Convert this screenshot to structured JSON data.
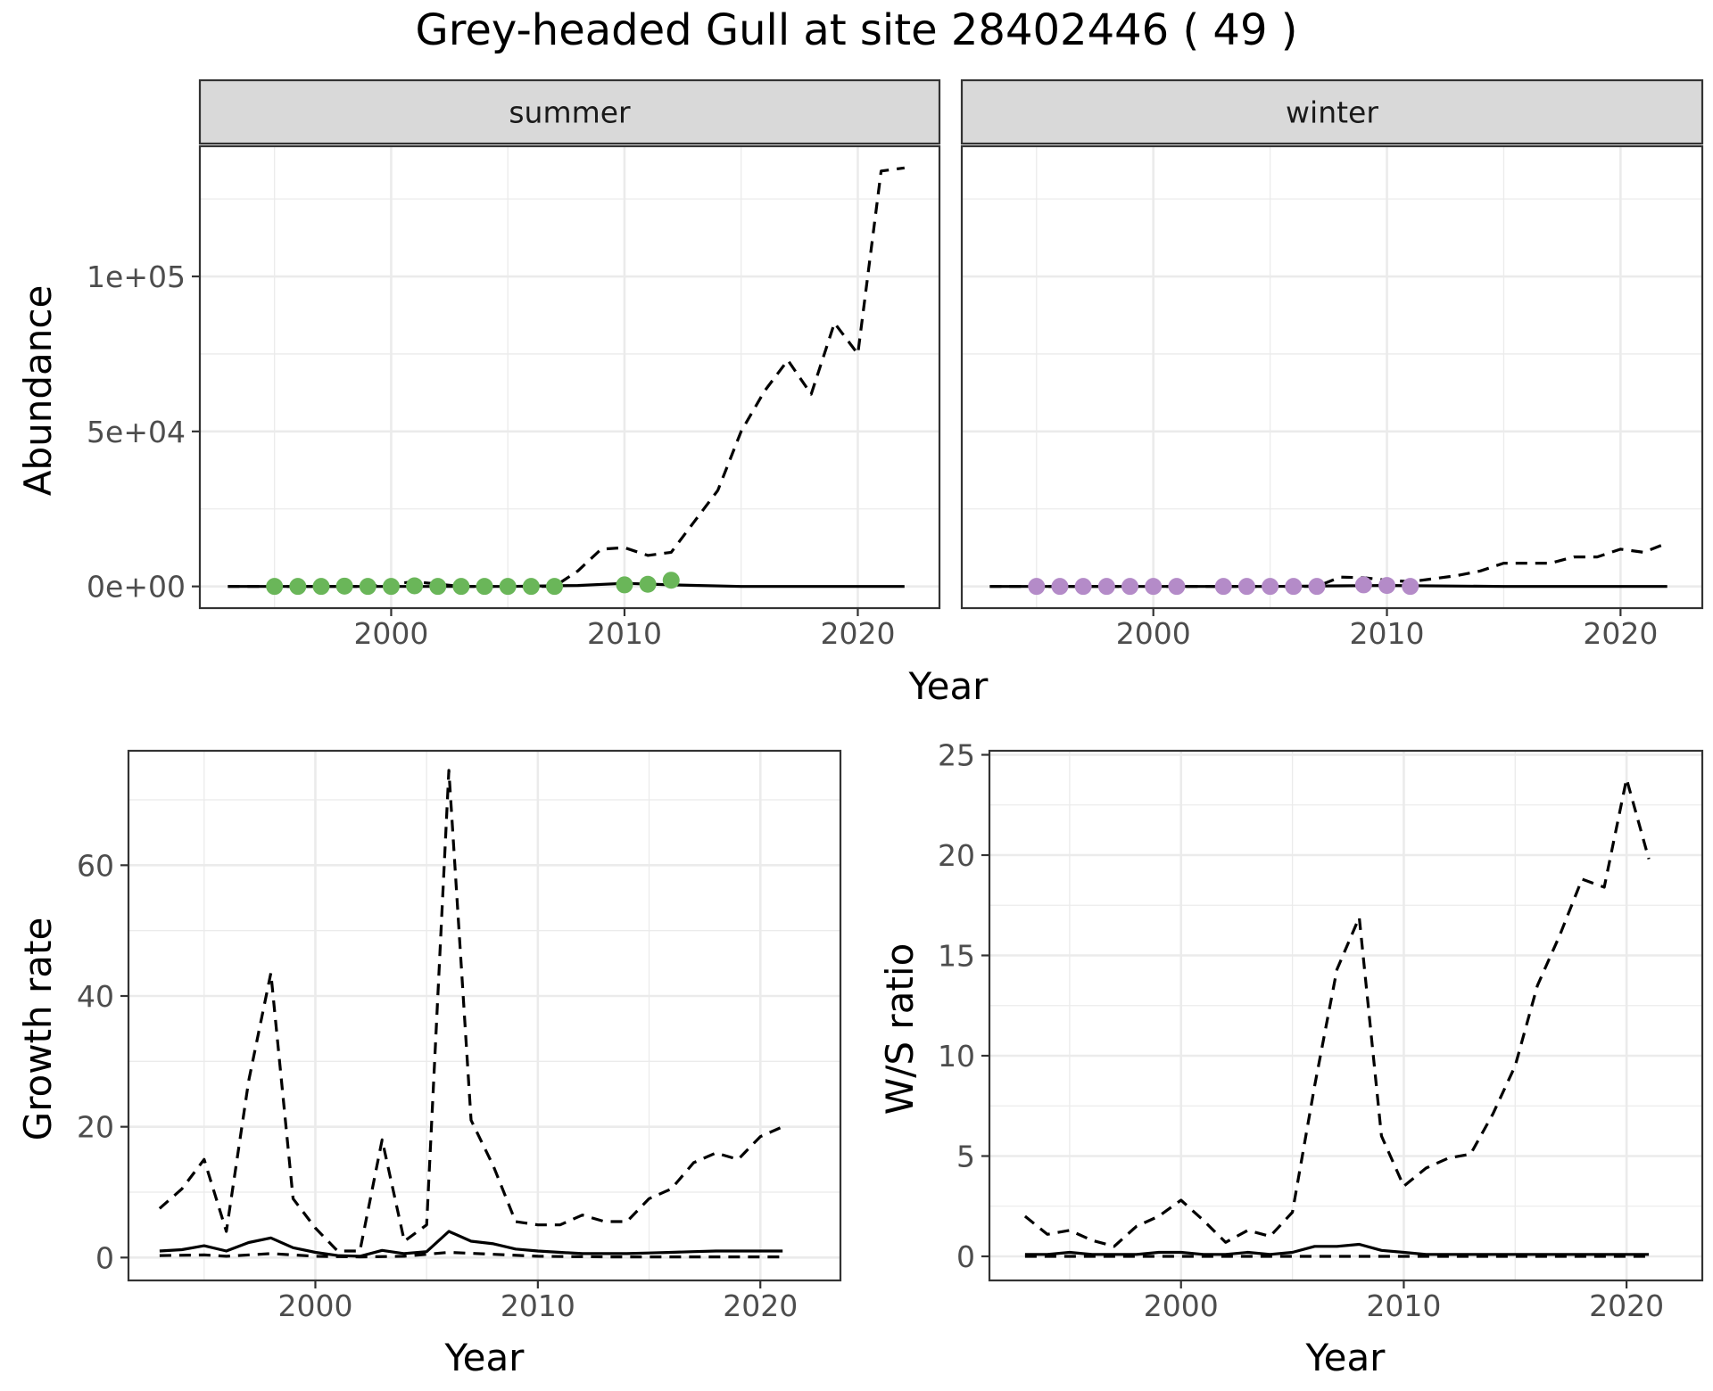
{
  "title": "Grey-headed Gull at site 28402446 ( 49 )",
  "colors": {
    "summer_points": "#6ab659",
    "winter_points": "#b48bc8",
    "lines": "#000000",
    "strip_bg": "#d9d9d9",
    "grid": "#ebebeb"
  },
  "chart_data": [
    {
      "type": "line",
      "panel": "summer",
      "facet_label": "summer",
      "xlabel": "Year",
      "ylabel": "Abundance",
      "xlim": [
        1991.8,
        2023.5
      ],
      "ylim": [
        -7000,
        142000
      ],
      "x_ticks": [
        2000,
        2010,
        2020
      ],
      "y_ticks": [
        0,
        50000,
        100000
      ],
      "y_tick_labels": [
        "0e+00",
        "5e+04",
        "1e+05"
      ],
      "grid": true,
      "series": [
        {
          "style": "solid",
          "x": [
            1993,
            1995,
            2000,
            2005,
            2008,
            2010,
            2012,
            2015,
            2020,
            2022
          ],
          "y": [
            0,
            0,
            0,
            0,
            300,
            1000,
            500,
            0,
            0,
            0
          ]
        },
        {
          "style": "dashed",
          "x": [
            1993,
            1995,
            1997,
            1999,
            2001,
            2003,
            2005,
            2007,
            2008,
            2009,
            2010,
            2011,
            2012,
            2013,
            2014,
            2015,
            2016,
            2017,
            2018,
            2019,
            2020,
            2021,
            2022
          ],
          "y": [
            0,
            0,
            0,
            0,
            1500,
            0,
            0,
            0,
            5000,
            12000,
            12500,
            10000,
            11000,
            21000,
            31000,
            50000,
            63000,
            73000,
            62000,
            85000,
            75000,
            134000,
            135000
          ]
        }
      ],
      "points": {
        "x": [
          1995,
          1996,
          1997,
          1998,
          1999,
          2000,
          2001,
          2002,
          2003,
          2004,
          2005,
          2006,
          2007,
          2010,
          2011,
          2012
        ],
        "y": [
          0,
          0,
          0,
          100,
          0,
          0,
          200,
          0,
          0,
          0,
          0,
          0,
          0,
          500,
          700,
          2000
        ]
      }
    },
    {
      "type": "line",
      "panel": "winter",
      "facet_label": "winter",
      "xlabel": "Year",
      "ylabel": "Abundance",
      "xlim": [
        1991.8,
        2023.5
      ],
      "ylim": [
        -7000,
        142000
      ],
      "x_ticks": [
        2000,
        2010,
        2020
      ],
      "grid": true,
      "series": [
        {
          "style": "solid",
          "x": [
            1993,
            2000,
            2005,
            2008,
            2010,
            2015,
            2022
          ],
          "y": [
            0,
            0,
            0,
            200,
            300,
            0,
            0
          ]
        },
        {
          "style": "dashed",
          "x": [
            1993,
            1995,
            2000,
            2005,
            2007,
            2008,
            2009,
            2010,
            2011,
            2012,
            2013,
            2014,
            2015,
            2016,
            2017,
            2018,
            2019,
            2020,
            2021,
            2022
          ],
          "y": [
            0,
            0,
            0,
            0,
            0,
            3000,
            2800,
            2000,
            1500,
            2500,
            3500,
            5000,
            7500,
            7500,
            7500,
            9500,
            9500,
            12000,
            11000,
            14000
          ]
        }
      ],
      "points": {
        "x": [
          1995,
          1996,
          1997,
          1998,
          1999,
          2000,
          2001,
          2003,
          2004,
          2005,
          2006,
          2007,
          2009,
          2010,
          2011
        ],
        "y": [
          0,
          0,
          0,
          0,
          0,
          0,
          0,
          0,
          0,
          0,
          0,
          0,
          500,
          300,
          0
        ]
      }
    },
    {
      "type": "line",
      "panel": "growth",
      "xlabel": "Year",
      "ylabel": "Growth rate",
      "xlim": [
        1991.6,
        2023.6
      ],
      "ylim": [
        -3.5,
        77.5
      ],
      "x_ticks": [
        2000,
        2010,
        2020
      ],
      "y_ticks": [
        0,
        20,
        40,
        60
      ],
      "grid": true,
      "series": [
        {
          "style": "solid",
          "x": [
            1993,
            1994,
            1995,
            1996,
            1997,
            1998,
            1999,
            2000,
            2001,
            2002,
            2003,
            2004,
            2005,
            2006,
            2007,
            2008,
            2009,
            2010,
            2011,
            2012,
            2013,
            2014,
            2015,
            2016,
            2017,
            2018,
            2019,
            2020,
            2021
          ],
          "y": [
            1.0,
            1.2,
            1.8,
            1.0,
            2.3,
            3.0,
            1.5,
            0.8,
            0.3,
            0.2,
            1.1,
            0.6,
            0.9,
            4.0,
            2.5,
            2.1,
            1.3,
            1.0,
            0.8,
            0.6,
            0.6,
            0.6,
            0.7,
            0.8,
            0.9,
            1.0,
            1.0,
            1.0,
            1.0
          ]
        },
        {
          "style": "dashed",
          "x": [
            1993,
            1994,
            1995,
            1996,
            1997,
            1998,
            1999,
            2000,
            2001,
            2002,
            2003,
            2004,
            2005,
            2006,
            2007,
            2008,
            2009,
            2010,
            2011,
            2012,
            2013,
            2014,
            2015,
            2016,
            2017,
            2018,
            2019,
            2020,
            2021
          ],
          "y": [
            7.5,
            10.5,
            15.0,
            4.0,
            27.0,
            43.5,
            9.0,
            4.5,
            1.0,
            1.0,
            18.0,
            2.5,
            5.0,
            74.5,
            21.0,
            14.0,
            5.5,
            5.0,
            5.0,
            6.5,
            5.5,
            5.5,
            9.0,
            10.5,
            14.5,
            16.0,
            15.0,
            18.5,
            20.0
          ]
        },
        {
          "style": "dashed",
          "x": [
            1993,
            1995,
            1996,
            1998,
            2000,
            2002,
            2004,
            2006,
            2008,
            2010,
            2013,
            2016,
            2021
          ],
          "y": [
            0.3,
            0.4,
            0.2,
            0.6,
            0.2,
            0.1,
            0.2,
            0.8,
            0.5,
            0.2,
            0.1,
            0.1,
            0.1
          ]
        }
      ]
    },
    {
      "type": "line",
      "panel": "ratio",
      "xlabel": "Year",
      "ylabel": "W/S ratio",
      "xlim": [
        1991.4,
        2023.4
      ],
      "ylim": [
        -1.2,
        25.2
      ],
      "x_ticks": [
        2000,
        2010,
        2020
      ],
      "y_ticks": [
        0,
        5,
        10,
        15,
        20,
        25
      ],
      "grid": true,
      "series": [
        {
          "style": "solid",
          "x": [
            1993,
            1994,
            1995,
            1996,
            1997,
            1998,
            1999,
            2000,
            2001,
            2002,
            2003,
            2004,
            2005,
            2006,
            2007,
            2008,
            2009,
            2010,
            2011,
            2012,
            2013,
            2014,
            2015,
            2016,
            2017,
            2018,
            2019,
            2020,
            2021
          ],
          "y": [
            0.1,
            0.1,
            0.2,
            0.1,
            0.1,
            0.1,
            0.2,
            0.2,
            0.1,
            0.1,
            0.2,
            0.1,
            0.2,
            0.5,
            0.5,
            0.6,
            0.3,
            0.2,
            0.1,
            0.1,
            0.1,
            0.1,
            0.1,
            0.1,
            0.1,
            0.1,
            0.1,
            0.1,
            0.1
          ]
        },
        {
          "style": "dashed",
          "x": [
            1993,
            1994,
            1995,
            1996,
            1997,
            1998,
            1999,
            2000,
            2001,
            2002,
            2003,
            2004,
            2005,
            2006,
            2007,
            2008,
            2009,
            2010,
            2011,
            2012,
            2013,
            2014,
            2015,
            2016,
            2017,
            2018,
            2019,
            2020,
            2021
          ],
          "y": [
            2.0,
            1.1,
            1.3,
            0.8,
            0.5,
            1.5,
            2.0,
            2.8,
            1.8,
            0.7,
            1.3,
            1.0,
            2.2,
            8.5,
            14.3,
            16.9,
            6.0,
            3.5,
            4.4,
            4.9,
            5.1,
            7.1,
            9.5,
            13.5,
            16.0,
            18.8,
            18.4,
            23.8,
            19.8
          ]
        },
        {
          "style": "dashed",
          "x": [
            1993,
            2000,
            2010,
            2021
          ],
          "y": [
            0,
            0,
            0,
            0
          ]
        }
      ]
    }
  ]
}
